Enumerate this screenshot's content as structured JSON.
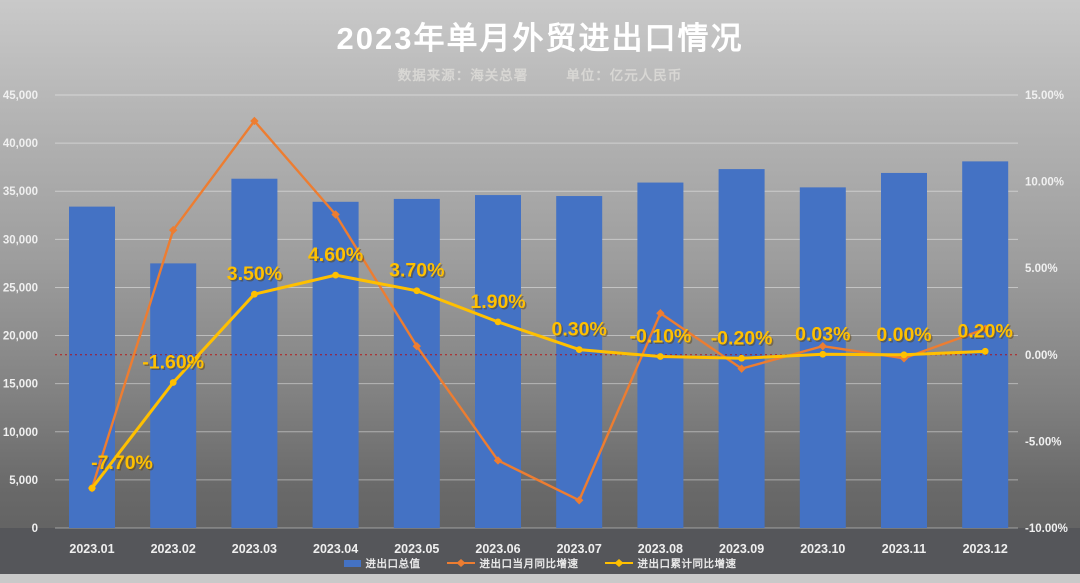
{
  "header": {
    "title": "2023年单月外贸进出口情况",
    "source_label": "数据来源：海关总署",
    "unit_label": "单位：亿元人民币"
  },
  "colors": {
    "bar_blue": "#4472C4",
    "line_orange": "#ED7D31",
    "line_yellow": "#FFC000",
    "data_label_yellow": "#FFC000",
    "data_label_shadow": "rgba(90,60,0,0.45)",
    "axis_text": "#F0F0F0",
    "zero_line_red": "#C00000",
    "gridline": "rgba(255,255,255,0.42)"
  },
  "chart_data": {
    "type": "bar",
    "subtype": "combo-bar-and-lines",
    "title": "2023年单月外贸进出口情况",
    "categories": [
      "2023.01",
      "2023.02",
      "2023.03",
      "2023.04",
      "2023.05",
      "2023.06",
      "2023.07",
      "2023.08",
      "2023.09",
      "2023.10",
      "2023.11",
      "2023.12"
    ],
    "series": [
      {
        "name": "进出口总值",
        "type": "bar",
        "axis": "left",
        "values": [
          33400,
          27500,
          36300,
          33900,
          34200,
          34600,
          34500,
          35900,
          37300,
          35400,
          36900,
          38100
        ]
      },
      {
        "name": "进出口当月同比增速",
        "type": "line",
        "axis": "right",
        "values": [
          -7.7,
          7.2,
          13.5,
          8.1,
          0.5,
          -6.1,
          -8.4,
          2.4,
          -0.8,
          0.5,
          -0.2,
          1.5
        ]
      },
      {
        "name": "进出口累计同比增速",
        "type": "line",
        "axis": "right",
        "values": [
          -7.7,
          -1.6,
          3.5,
          4.6,
          3.7,
          1.9,
          0.3,
          -0.1,
          -0.2,
          0.03,
          0.0,
          0.2
        ],
        "labels": [
          "-7.70%",
          "-1.60%",
          "3.50%",
          "4.60%",
          "3.70%",
          "1.90%",
          "0.30%",
          "-0.10%",
          "-0.20%",
          "0.03%",
          "0.00%",
          "0.20%"
        ]
      }
    ],
    "left_axis": {
      "min": 0,
      "max": 45000,
      "step": 5000,
      "ticks": [
        "0",
        "5,000",
        "10,000",
        "15,000",
        "20,000",
        "25,000",
        "30,000",
        "35,000",
        "40,000",
        "45,000"
      ]
    },
    "right_axis": {
      "min": -10,
      "max": 15,
      "step": 5,
      "ticks": [
        "15.00%",
        "10.00%",
        "5.00%",
        "0.00%",
        "-5.00%",
        "-10.00%"
      ]
    },
    "grid": true,
    "zero_reference_line": true,
    "legend_position": "bottom"
  },
  "legend": {
    "items": [
      {
        "label": "进出口总值",
        "swatch": "bar",
        "swatch_color": "bar_blue"
      },
      {
        "label": "进出口当月同比增速",
        "swatch": "line-diamond",
        "swatch_color": "line_orange"
      },
      {
        "label": "进出口累计同比增速",
        "swatch": "line-diamond",
        "swatch_color": "line_yellow"
      }
    ]
  }
}
